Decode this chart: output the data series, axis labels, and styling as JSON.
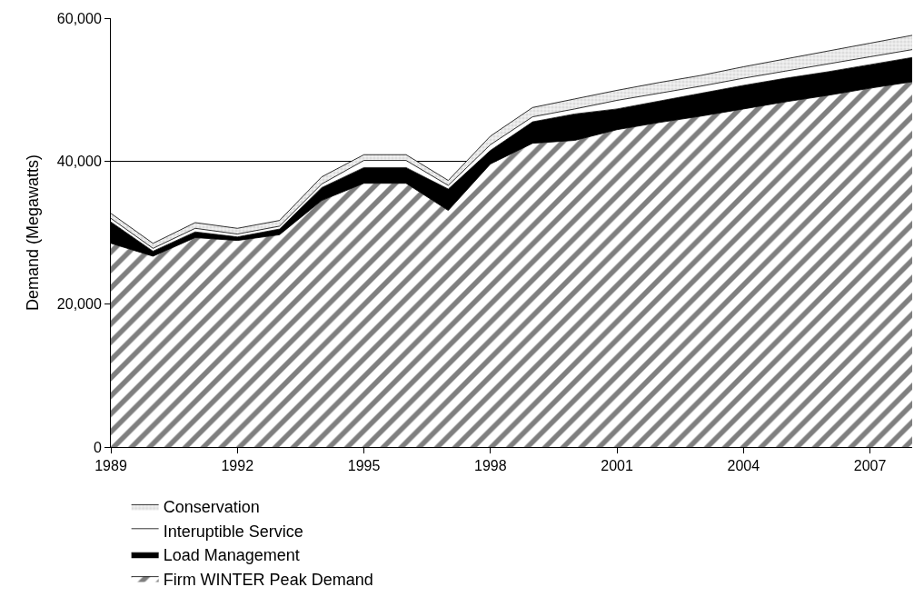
{
  "chart_data": {
    "type": "area",
    "stacked": true,
    "ylabel": "Demand (Megawatts)",
    "x": [
      1989,
      1990,
      1991,
      1992,
      1993,
      1994,
      1995,
      1996,
      1997,
      1998,
      1999,
      2000,
      2001,
      2002,
      2003,
      2004,
      2005,
      2006,
      2007,
      2008
    ],
    "series": [
      {
        "name": "Firm WINTER Peak Demand",
        "color": "#000000",
        "values": [
          28500,
          26700,
          29300,
          28900,
          29700,
          34500,
          36900,
          36900,
          33100,
          39600,
          42500,
          42900,
          44400,
          45400,
          46300,
          47300,
          48300,
          49200,
          50200,
          51100
        ]
      },
      {
        "name": "Load Management",
        "color": "#000000",
        "values": [
          3000,
          700,
          800,
          500,
          800,
          1800,
          2200,
          2200,
          3000,
          1900,
          3000,
          3700,
          2900,
          3000,
          3200,
          3300,
          3300,
          3300,
          3300,
          3400
        ]
      },
      {
        "name": "Interuptible Service",
        "color": "#ffffff",
        "values": [
          500,
          400,
          500,
          400,
          400,
          500,
          1000,
          1000,
          500,
          800,
          700,
          700,
          1200,
          1100,
          1000,
          1000,
          1000,
          1100,
          1100,
          1100
        ]
      },
      {
        "name": "Conservation",
        "color": "#c8c8c8",
        "values": [
          700,
          700,
          800,
          800,
          800,
          1000,
          800,
          800,
          700,
          1200,
          1300,
          1400,
          1400,
          1500,
          1500,
          1600,
          1700,
          1800,
          1900,
          2000
        ]
      }
    ],
    "xlim": [
      1989,
      2008
    ],
    "xticks": [
      1989,
      1992,
      1995,
      1998,
      2001,
      2004,
      2007
    ],
    "ylim": [
      0,
      60000
    ],
    "yticks": [
      {
        "value": 0,
        "label": "0"
      },
      {
        "value": 20000,
        "label": "20,000"
      },
      {
        "value": 40000,
        "label": "40,000"
      },
      {
        "value": 60000,
        "label": "60,000"
      }
    ],
    "grid": "y",
    "legend": "bottom"
  }
}
